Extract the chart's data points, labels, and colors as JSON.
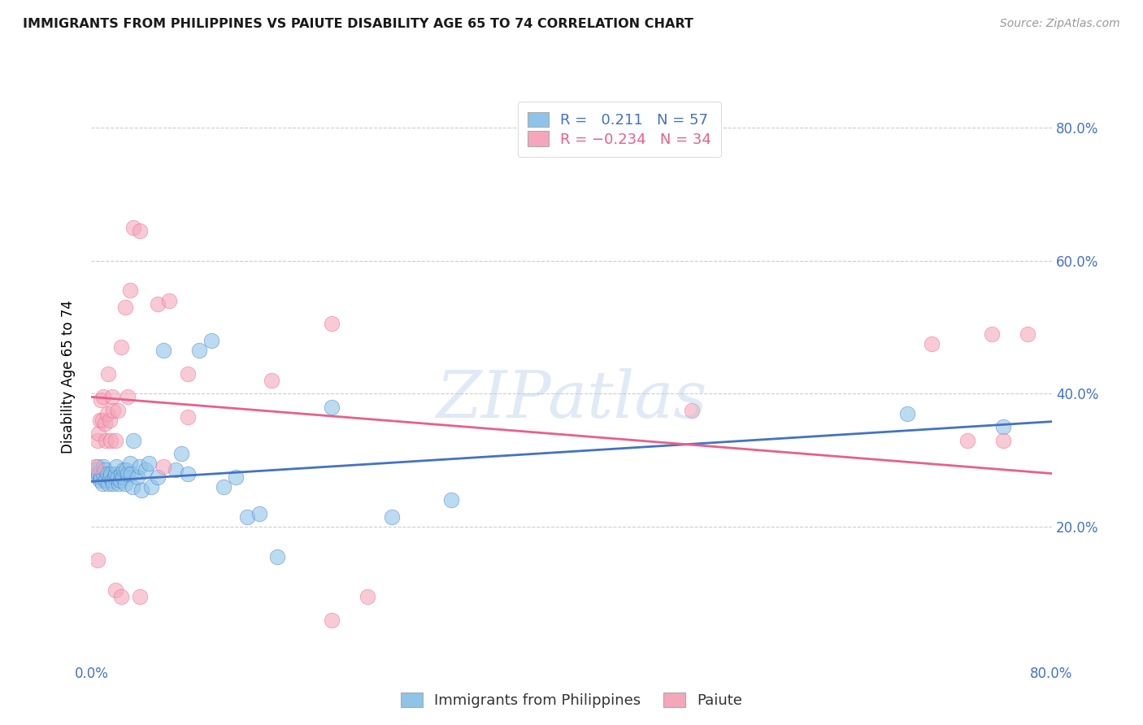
{
  "title": "IMMIGRANTS FROM PHILIPPINES VS PAIUTE DISABILITY AGE 65 TO 74 CORRELATION CHART",
  "source": "Source: ZipAtlas.com",
  "ylabel": "Disability Age 65 to 74",
  "xlim": [
    0.0,
    0.8
  ],
  "ylim": [
    0.0,
    0.85
  ],
  "color_blue": "#8ec4e8",
  "color_pink": "#f4a7bb",
  "line_blue": "#4472c4",
  "line_pink": "#e8608a",
  "watermark": "ZIPatlas",
  "blue_scatter_x": [
    0.003,
    0.004,
    0.005,
    0.005,
    0.006,
    0.007,
    0.008,
    0.009,
    0.01,
    0.01,
    0.011,
    0.012,
    0.013,
    0.014,
    0.015,
    0.016,
    0.017,
    0.018,
    0.019,
    0.02,
    0.021,
    0.022,
    0.023,
    0.024,
    0.025,
    0.026,
    0.027,
    0.028,
    0.029,
    0.03,
    0.032,
    0.033,
    0.034,
    0.035,
    0.038,
    0.04,
    0.042,
    0.045,
    0.048,
    0.05,
    0.055,
    0.06,
    0.07,
    0.075,
    0.08,
    0.09,
    0.1,
    0.11,
    0.12,
    0.13,
    0.14,
    0.155,
    0.2,
    0.25,
    0.3,
    0.68,
    0.76
  ],
  "blue_scatter_y": [
    0.28,
    0.285,
    0.29,
    0.275,
    0.28,
    0.27,
    0.275,
    0.265,
    0.28,
    0.29,
    0.285,
    0.27,
    0.28,
    0.265,
    0.275,
    0.28,
    0.27,
    0.265,
    0.275,
    0.28,
    0.29,
    0.275,
    0.265,
    0.27,
    0.28,
    0.275,
    0.285,
    0.265,
    0.285,
    0.28,
    0.295,
    0.28,
    0.26,
    0.33,
    0.275,
    0.29,
    0.255,
    0.285,
    0.295,
    0.26,
    0.275,
    0.465,
    0.285,
    0.31,
    0.28,
    0.465,
    0.48,
    0.26,
    0.275,
    0.215,
    0.22,
    0.155,
    0.38,
    0.215,
    0.24,
    0.37,
    0.35
  ],
  "pink_scatter_x": [
    0.003,
    0.005,
    0.006,
    0.007,
    0.008,
    0.009,
    0.01,
    0.011,
    0.012,
    0.013,
    0.014,
    0.015,
    0.016,
    0.017,
    0.018,
    0.02,
    0.022,
    0.025,
    0.028,
    0.03,
    0.032,
    0.035,
    0.04,
    0.055,
    0.065,
    0.08,
    0.15,
    0.2,
    0.23,
    0.7,
    0.73,
    0.75,
    0.76,
    0.78
  ],
  "pink_scatter_y": [
    0.29,
    0.33,
    0.34,
    0.36,
    0.39,
    0.36,
    0.395,
    0.355,
    0.33,
    0.37,
    0.43,
    0.36,
    0.33,
    0.395,
    0.375,
    0.33,
    0.375,
    0.47,
    0.53,
    0.395,
    0.555,
    0.65,
    0.645,
    0.535,
    0.54,
    0.43,
    0.42,
    0.505,
    0.095,
    0.475,
    0.33,
    0.49,
    0.33,
    0.49
  ],
  "pink_extra_x": [
    0.005,
    0.02,
    0.025,
    0.04,
    0.06,
    0.08,
    0.2,
    0.5
  ],
  "pink_extra_y": [
    0.15,
    0.105,
    0.095,
    0.095,
    0.29,
    0.365,
    0.06,
    0.375
  ],
  "blue_trend_x": [
    0.0,
    0.8
  ],
  "blue_trend_y": [
    0.268,
    0.358
  ],
  "pink_trend_x": [
    0.0,
    0.8
  ],
  "pink_trend_y": [
    0.395,
    0.28
  ]
}
